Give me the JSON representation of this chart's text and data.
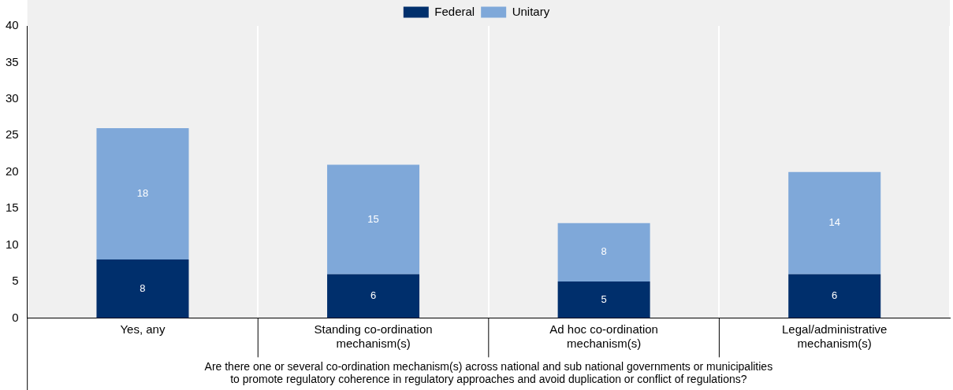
{
  "chart_data": {
    "type": "bar",
    "stacked": true,
    "categories": [
      "Yes, any",
      "Standing co-ordination mechanism(s)",
      "Ad hoc co-ordination mechanism(s)",
      "Legal/administrative mechanism(s)"
    ],
    "series": [
      {
        "name": "Federal",
        "color": "#002f6c",
        "values": [
          8,
          6,
          5,
          6
        ]
      },
      {
        "name": "Unitary",
        "color": "#7fa8d9",
        "values": [
          18,
          15,
          8,
          14
        ]
      }
    ],
    "xlabel": "Are there one or several co-ordination mechanism(s) across national and sub national governments or municipalities\nto promote regulatory coherence in regulatory approaches and avoid duplication or conflict of regulations?",
    "ylim": [
      0,
      40
    ],
    "yticks": [
      0,
      5,
      10,
      15,
      20,
      25,
      30,
      35,
      40
    ],
    "grid": "x",
    "legend": "top",
    "data_labels": true
  }
}
